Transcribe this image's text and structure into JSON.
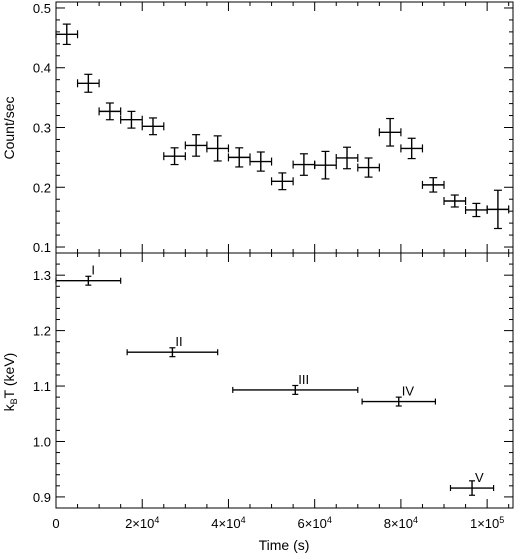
{
  "chart_data": [
    {
      "type": "scatter",
      "panel": "top",
      "ylabel": "Count/sec",
      "xlabel": "",
      "xlim": [
        0,
        106000
      ],
      "ylim": [
        0.09,
        0.51
      ],
      "yticks": [
        {
          "value": 0.1,
          "label": "0.1"
        },
        {
          "value": 0.2,
          "label": "0.2"
        },
        {
          "value": 0.3,
          "label": "0.3"
        },
        {
          "value": 0.4,
          "label": "0.4"
        },
        {
          "value": 0.5,
          "label": "0.5"
        }
      ],
      "points": [
        {
          "x": 2500,
          "xerr": 2500,
          "y": 0.456,
          "yerr": 0.017
        },
        {
          "x": 7500,
          "xerr": 2500,
          "y": 0.374,
          "yerr": 0.015
        },
        {
          "x": 12500,
          "xerr": 2500,
          "y": 0.327,
          "yerr": 0.014
        },
        {
          "x": 17500,
          "xerr": 2500,
          "y": 0.313,
          "yerr": 0.014
        },
        {
          "x": 22500,
          "xerr": 2500,
          "y": 0.302,
          "yerr": 0.014
        },
        {
          "x": 27500,
          "xerr": 2500,
          "y": 0.252,
          "yerr": 0.014
        },
        {
          "x": 32500,
          "xerr": 2500,
          "y": 0.27,
          "yerr": 0.018
        },
        {
          "x": 37500,
          "xerr": 2500,
          "y": 0.265,
          "yerr": 0.021
        },
        {
          "x": 42500,
          "xerr": 2500,
          "y": 0.25,
          "yerr": 0.016
        },
        {
          "x": 47500,
          "xerr": 2500,
          "y": 0.243,
          "yerr": 0.016
        },
        {
          "x": 52500,
          "xerr": 2500,
          "y": 0.21,
          "yerr": 0.014
        },
        {
          "x": 57500,
          "xerr": 2500,
          "y": 0.238,
          "yerr": 0.018
        },
        {
          "x": 62500,
          "xerr": 2500,
          "y": 0.237,
          "yerr": 0.023
        },
        {
          "x": 67500,
          "xerr": 2500,
          "y": 0.249,
          "yerr": 0.018
        },
        {
          "x": 72500,
          "xerr": 2500,
          "y": 0.233,
          "yerr": 0.016
        },
        {
          "x": 77500,
          "xerr": 2500,
          "y": 0.292,
          "yerr": 0.023
        },
        {
          "x": 82500,
          "xerr": 2500,
          "y": 0.265,
          "yerr": 0.017
        },
        {
          "x": 87500,
          "xerr": 2500,
          "y": 0.204,
          "yerr": 0.012
        },
        {
          "x": 92500,
          "xerr": 2500,
          "y": 0.177,
          "yerr": 0.01
        },
        {
          "x": 97500,
          "xerr": 2500,
          "y": 0.162,
          "yerr": 0.011
        },
        {
          "x": 102500,
          "xerr": 2500,
          "y": 0.163,
          "yerr": 0.032
        }
      ]
    },
    {
      "type": "scatter",
      "panel": "bottom",
      "ylabel_main": "k",
      "ylabel_sub": "B",
      "ylabel_rest": "T (keV)",
      "xlabel": "Time (s)",
      "xlim": [
        0,
        106000
      ],
      "ylim": [
        0.88,
        1.34
      ],
      "yticks": [
        {
          "value": 0.9,
          "label": "0.9"
        },
        {
          "value": 1.0,
          "label": "1.0"
        },
        {
          "value": 1.1,
          "label": "1.1"
        },
        {
          "value": 1.2,
          "label": "1.2"
        },
        {
          "value": 1.3,
          "label": "1.3"
        }
      ],
      "xticks": [
        {
          "value": 0,
          "label": "0",
          "exp": ""
        },
        {
          "value": 20000,
          "label": "2×10",
          "exp": "4"
        },
        {
          "value": 40000,
          "label": "4×10",
          "exp": "4"
        },
        {
          "value": 60000,
          "label": "6×10",
          "exp": "4"
        },
        {
          "value": 80000,
          "label": "8×10",
          "exp": "4"
        },
        {
          "value": 100000,
          "label": "1×10",
          "exp": "5"
        }
      ],
      "points": [
        {
          "label": "I",
          "x": 7500,
          "xerr": 7500,
          "y": 1.29,
          "yerr": 0.008
        },
        {
          "label": "II",
          "x": 27000,
          "xerr": 10500,
          "y": 1.161,
          "yerr": 0.008
        },
        {
          "label": "III",
          "x": 55500,
          "xerr": 14500,
          "y": 1.093,
          "yerr": 0.008
        },
        {
          "label": "IV",
          "x": 79500,
          "xerr": 8500,
          "y": 1.072,
          "yerr": 0.008
        },
        {
          "label": "V",
          "x": 96500,
          "xerr": 5000,
          "y": 0.916,
          "yerr": 0.013
        }
      ]
    }
  ]
}
